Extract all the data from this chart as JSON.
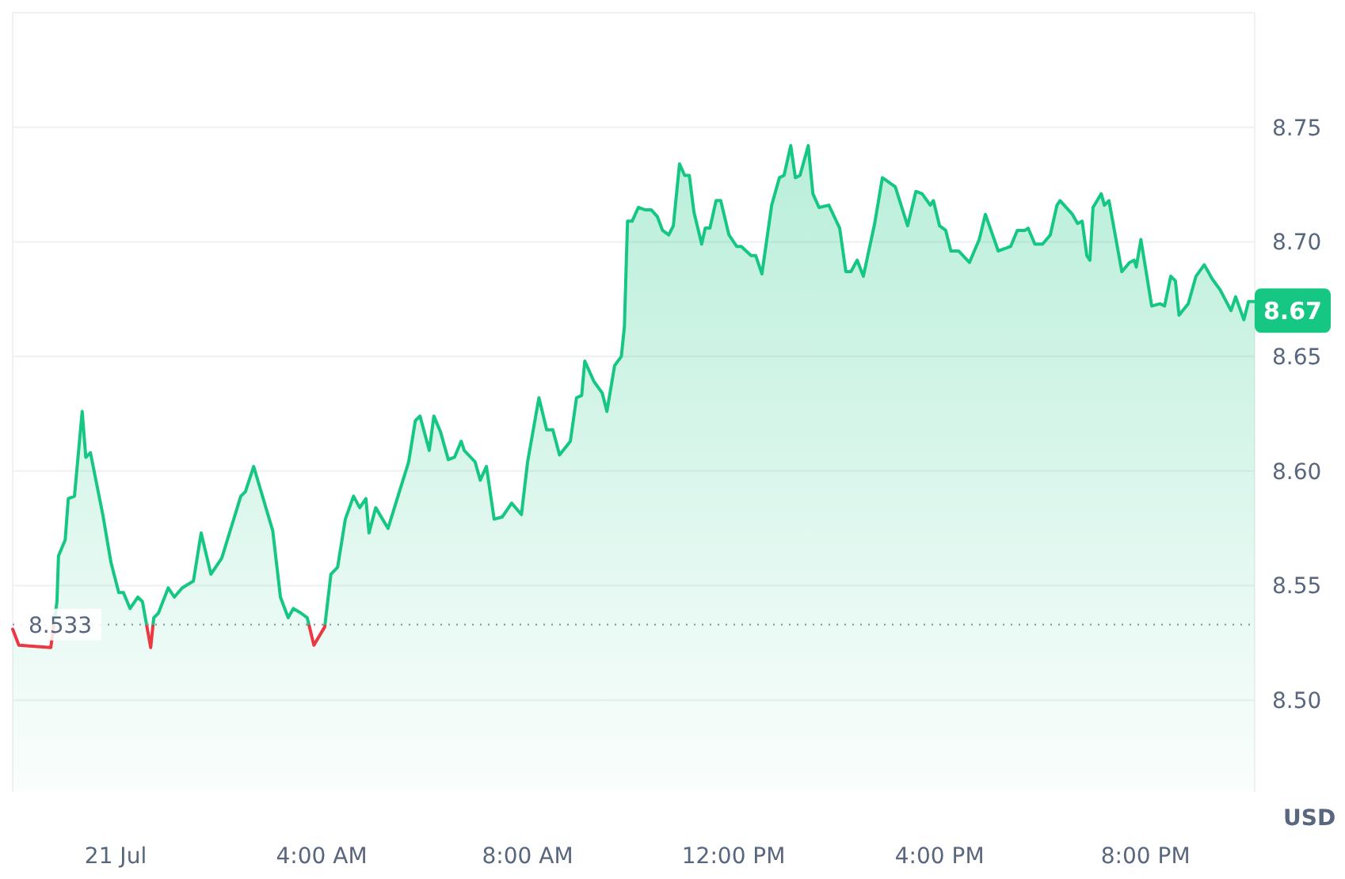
{
  "chart_data": {
    "type": "area",
    "ylabel": "USD",
    "x": [
      -2.0,
      -1.88,
      -1.26,
      -1.14,
      -1.11,
      -0.98,
      -0.92,
      -0.8,
      -0.65,
      -0.58,
      -0.49,
      -0.25,
      -0.09,
      0.06,
      0.15,
      0.28,
      0.43,
      0.52,
      0.68,
      0.74,
      0.83,
      1.02,
      1.14,
      1.29,
      1.51,
      1.66,
      1.85,
      2.06,
      2.43,
      2.52,
      2.68,
      3.05,
      3.2,
      3.35,
      3.45,
      3.6,
      3.72,
      3.85,
      4.06,
      4.18,
      4.31,
      4.46,
      4.62,
      4.74,
      4.86,
      4.92,
      5.05,
      5.29,
      5.51,
      5.69,
      5.82,
      5.91,
      6.09,
      6.18,
      6.31,
      6.46,
      6.58,
      6.71,
      6.77,
      6.98,
      7.08,
      7.2,
      7.35,
      7.51,
      7.69,
      7.88,
      8.0,
      8.22,
      8.37,
      8.49,
      8.62,
      8.83,
      8.95,
      9.05,
      9.11,
      9.29,
      9.45,
      9.54,
      9.69,
      9.82,
      9.88,
      9.94,
      10.03,
      10.15,
      10.28,
      10.4,
      10.52,
      10.62,
      10.74,
      10.83,
      10.95,
      11.05,
      11.14,
      11.23,
      11.38,
      11.45,
      11.54,
      11.66,
      11.75,
      11.91,
      12.06,
      12.15,
      12.34,
      12.43,
      12.55,
      12.74,
      12.89,
      12.98,
      13.11,
      13.2,
      13.29,
      13.45,
      13.54,
      13.66,
      13.85,
      14.06,
      14.18,
      14.28,
      14.4,
      14.52,
      14.74,
      14.89,
      15.14,
      15.38,
      15.54,
      15.66,
      15.82,
      15.88,
      16.0,
      16.12,
      16.22,
      16.37,
      16.58,
      16.77,
      16.89,
      17.14,
      17.38,
      17.51,
      17.66,
      17.72,
      17.85,
      18.0,
      18.15,
      18.28,
      18.34,
      18.58,
      18.68,
      18.77,
      18.86,
      18.92,
      18.98,
      19.14,
      19.2,
      19.29,
      19.54,
      19.69,
      19.78,
      19.82,
      19.91,
      20.12,
      20.28,
      20.37,
      20.49,
      20.58,
      20.65,
      20.83,
      20.98,
      21.14,
      21.29,
      21.45,
      21.66,
      21.75,
      21.91,
      22.0,
      22.12
    ],
    "series": [
      {
        "color": "#16c784",
        "values": [
          8.531,
          8.524,
          8.523,
          8.543,
          8.563,
          8.57,
          8.588,
          8.589,
          8.626,
          8.606,
          8.608,
          8.581,
          8.56,
          8.547,
          8.547,
          8.54,
          8.545,
          8.543,
          8.523,
          8.536,
          8.538,
          8.549,
          8.545,
          8.549,
          8.552,
          8.573,
          8.555,
          8.562,
          8.589,
          8.591,
          8.602,
          8.574,
          8.545,
          8.536,
          8.54,
          8.538,
          8.536,
          8.524,
          8.532,
          8.555,
          8.558,
          8.579,
          8.589,
          8.584,
          8.588,
          8.573,
          8.584,
          8.575,
          8.591,
          8.604,
          8.622,
          8.624,
          8.609,
          8.624,
          8.617,
          8.605,
          8.606,
          8.613,
          8.609,
          8.604,
          8.596,
          8.602,
          8.579,
          8.58,
          8.586,
          8.581,
          8.604,
          8.632,
          8.618,
          8.618,
          8.607,
          8.613,
          8.632,
          8.633,
          8.648,
          8.639,
          8.634,
          8.626,
          8.646,
          8.65,
          8.663,
          8.709,
          8.709,
          8.715,
          8.714,
          8.714,
          8.711,
          8.705,
          8.703,
          8.707,
          8.734,
          8.729,
          8.729,
          8.713,
          8.699,
          8.706,
          8.706,
          8.718,
          8.718,
          8.703,
          8.698,
          8.698,
          8.694,
          8.694,
          8.686,
          8.716,
          8.728,
          8.729,
          8.742,
          8.728,
          8.729,
          8.742,
          8.721,
          8.715,
          8.716,
          8.706,
          8.687,
          8.687,
          8.692,
          8.685,
          8.708,
          8.728,
          8.724,
          8.707,
          8.722,
          8.721,
          8.716,
          8.718,
          8.707,
          8.705,
          8.696,
          8.696,
          8.691,
          8.701,
          8.712,
          8.696,
          8.698,
          8.705,
          8.705,
          8.706,
          8.699,
          8.699,
          8.703,
          8.716,
          8.718,
          8.712,
          8.708,
          8.709,
          8.694,
          8.692,
          8.715,
          8.721,
          8.716,
          8.718,
          8.687,
          8.691,
          8.692,
          8.689,
          8.701,
          8.672,
          8.673,
          8.672,
          8.685,
          8.683,
          8.668,
          8.673,
          8.685,
          8.69,
          8.684,
          8.679,
          8.67,
          8.676,
          8.666,
          8.674,
          8.674
        ]
      }
    ],
    "xlim": [
      -2.0,
      22.12
    ],
    "xticks": [
      {
        "value": 0,
        "label": "21 Jul"
      },
      {
        "value": 4,
        "label": "4:00 AM"
      },
      {
        "value": 8,
        "label": "8:00 AM"
      },
      {
        "value": 12,
        "label": "12:00 PM"
      },
      {
        "value": 16,
        "label": "4:00 PM"
      },
      {
        "value": 20,
        "label": "8:00 PM"
      }
    ],
    "ylim": [
      8.46,
      8.8
    ],
    "yticks": [
      {
        "value": 8.5,
        "label": "8.50"
      },
      {
        "value": 8.55,
        "label": "8.55"
      },
      {
        "value": 8.6,
        "label": "8.60"
      },
      {
        "value": 8.65,
        "label": "8.65"
      },
      {
        "value": 8.7,
        "label": "8.70"
      },
      {
        "value": 8.75,
        "label": "8.75"
      }
    ],
    "grid": "y",
    "ref_lines": [
      {
        "axis": "y",
        "value": 8.533,
        "label": "8.533",
        "line_style": "dotted",
        "color": "#9aa0ab"
      }
    ],
    "annotations": [
      {
        "text": "8.67",
        "x": 22.12,
        "y": 8.67
      }
    ]
  }
}
